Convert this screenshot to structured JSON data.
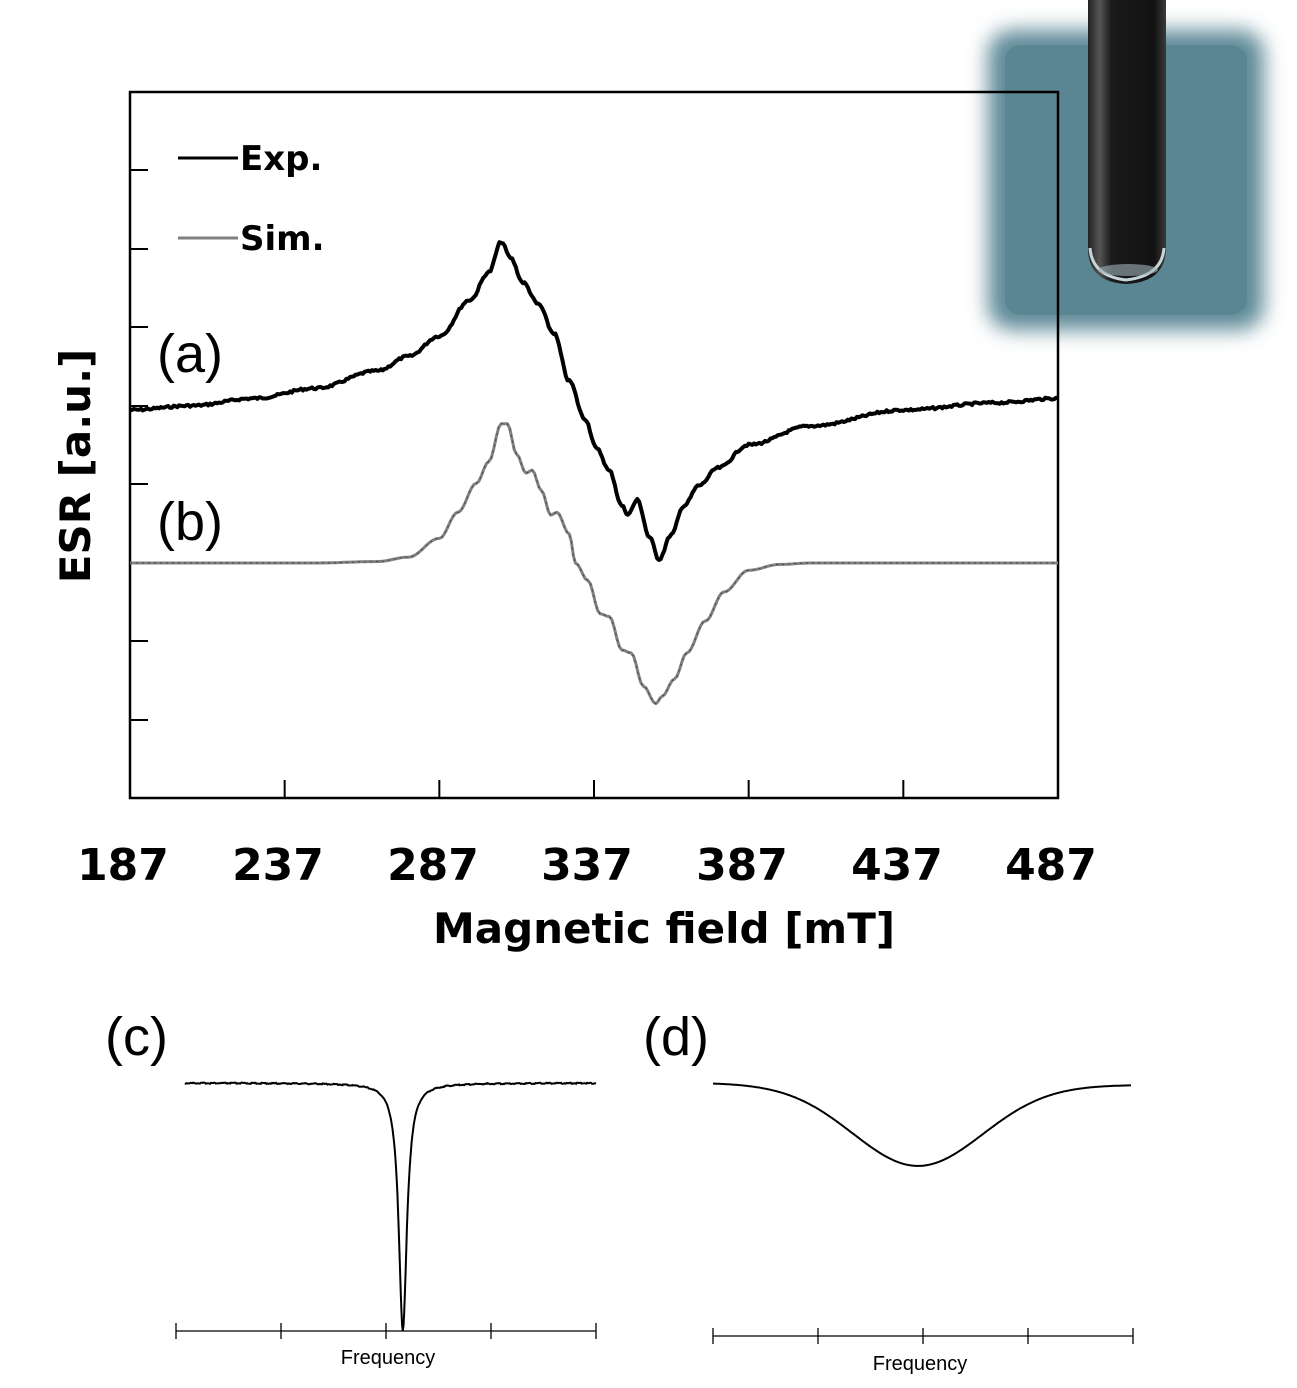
{
  "chart_data": [
    {
      "type": "line",
      "xlabel": "Magnetic field [mT]",
      "ylabel": "ESR [a.u.]",
      "xlim": [
        187,
        487
      ],
      "xticks": [
        "187",
        "237",
        "287",
        "337",
        "387",
        "437",
        "487"
      ],
      "grid": false,
      "legend": {
        "position": "top-left",
        "entries": [
          "Exp.",
          "Sim."
        ]
      },
      "panel_labels": [
        "(a)",
        "(b)"
      ],
      "series": [
        {
          "name": "Exp.",
          "color": "#000000",
          "baseline": 0.0,
          "x": [
            187,
            207,
            227,
            247,
            267,
            277,
            287,
            297,
            303,
            307,
            310,
            314,
            319,
            324,
            329,
            334,
            338,
            342,
            346,
            348,
            351,
            355,
            358,
            362,
            366,
            371,
            377,
            387,
            407,
            437,
            467,
            487
          ],
          "value": [
            0.0,
            0.03,
            0.08,
            0.15,
            0.27,
            0.37,
            0.51,
            0.76,
            0.95,
            1.16,
            1.05,
            0.88,
            0.73,
            0.53,
            0.2,
            -0.06,
            -0.27,
            -0.42,
            -0.66,
            -0.72,
            -0.62,
            -0.88,
            -1.03,
            -0.86,
            -0.66,
            -0.52,
            -0.4,
            -0.24,
            -0.11,
            0.0,
            0.05,
            0.08
          ]
        },
        {
          "name": "Sim.",
          "color": "#808080",
          "baseline": 0.0,
          "x": [
            187,
            247,
            267,
            277,
            287,
            293,
            299,
            303,
            307,
            309,
            312,
            315,
            317,
            320,
            323,
            325,
            329,
            331,
            335,
            339,
            342,
            346,
            349,
            353,
            357,
            359,
            363,
            367,
            373,
            379,
            387,
            397,
            407,
            487
          ],
          "value": [
            0.0,
            0.0,
            0.01,
            0.04,
            0.17,
            0.35,
            0.55,
            0.7,
            0.96,
            0.96,
            0.75,
            0.62,
            0.64,
            0.5,
            0.33,
            0.35,
            0.2,
            0.0,
            -0.12,
            -0.35,
            -0.37,
            -0.6,
            -0.62,
            -0.85,
            -0.97,
            -0.92,
            -0.8,
            -0.62,
            -0.4,
            -0.2,
            -0.05,
            -0.01,
            0.0,
            0.0
          ]
        }
      ]
    },
    {
      "type": "line",
      "panel_label": "(c)",
      "xlabel": "Frequency",
      "series": [
        {
          "shape": "lorentzian-dip",
          "center": 0.53,
          "halfwidth": 0.012,
          "depth": 1.0
        }
      ]
    },
    {
      "type": "line",
      "panel_label": "(d)",
      "xlabel": "Frequency",
      "series": [
        {
          "shape": "broad-dip",
          "center": 0.49,
          "halfwidth": 0.22,
          "depth": 1.0
        }
      ]
    }
  ],
  "inset": {
    "description_colors": {
      "background": "#5e8a98",
      "tube": "#1a1a1a"
    }
  }
}
